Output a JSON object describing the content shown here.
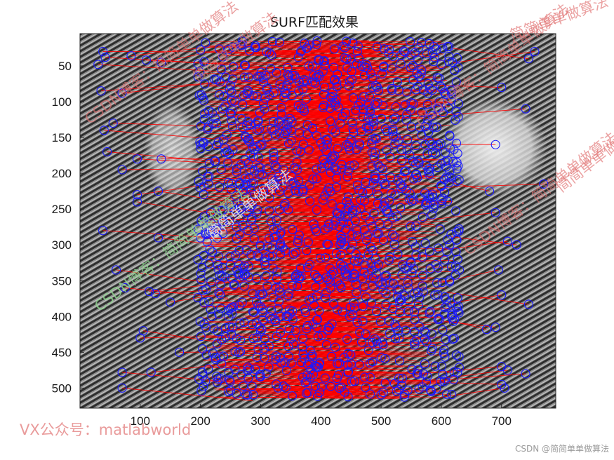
{
  "chart_data": {
    "type": "scatter",
    "title": "SURF匹配效果",
    "xlabel": "",
    "ylabel": "",
    "xlim": [
      0,
      790
    ],
    "ylim": [
      528,
      5
    ],
    "x_ticks": [
      100,
      200,
      300,
      400,
      500,
      600,
      700
    ],
    "y_ticks": [
      50,
      100,
      150,
      200,
      250,
      300,
      350,
      400,
      450,
      500
    ],
    "background": "grayscale textured image (side-by-side image pair)",
    "marker_color": "#1a1aff",
    "line_color": "#ff0000",
    "series": [
      {
        "marker": "circle",
        "points_left_sample": [
          [
            30,
            48
          ],
          [
            38,
            30
          ],
          [
            42,
            38
          ],
          [
            85,
            36
          ],
          [
            35,
            85
          ],
          [
            70,
            88
          ],
          [
            110,
            42
          ],
          [
            135,
            45
          ],
          [
            95,
            180
          ],
          [
            45,
            170
          ],
          [
            40,
            140
          ],
          [
            55,
            130
          ],
          [
            70,
            195
          ],
          [
            95,
            230
          ],
          [
            95,
            240
          ],
          [
            38,
            280
          ],
          [
            130,
            225
          ],
          [
            135,
            180
          ],
          [
            130,
            290
          ],
          [
            60,
            335
          ],
          [
            75,
            360
          ],
          [
            105,
            420
          ],
          [
            100,
            430
          ],
          [
            70,
            478
          ],
          [
            70,
            500
          ],
          [
            118,
            478
          ],
          [
            125,
            368
          ],
          [
            115,
            365
          ],
          [
            165,
            450
          ],
          [
            150,
            380
          ]
        ],
        "points_right_sample": [
          [
            755,
            30
          ],
          [
            745,
            40
          ],
          [
            700,
            80
          ],
          [
            740,
            110
          ],
          [
            690,
            160
          ],
          [
            770,
            215
          ],
          [
            680,
            225
          ],
          [
            690,
            255
          ],
          [
            725,
            300
          ],
          [
            710,
            295
          ],
          [
            695,
            335
          ],
          [
            700,
            370
          ],
          [
            745,
            383
          ],
          [
            690,
            415
          ],
          [
            675,
            418
          ],
          [
            700,
            470
          ],
          [
            710,
            475
          ],
          [
            740,
            480
          ],
          [
            700,
            495
          ],
          [
            705,
            500
          ]
        ]
      }
    ]
  },
  "watermarks": {
    "csdn_blog_1": "CSDN博客：简简单单做算法",
    "csdn_blog_2": "CSDN博客：简简单单做算法",
    "csdn_blog_3": "CSDN博客：简简单单做算法",
    "csdn_blog_4": "CSDN博客：简简单单做算法",
    "simple_1": "简简单单做算法",
    "simple_2": "简简单单做算法",
    "simple_3": "简简单单做算法",
    "simple_4": "简简单单做算法",
    "vx": "VX公众号：matlabworld",
    "footer": "CSDN @简简单单做算法"
  },
  "colors": {
    "marker": "#1a1aff",
    "match_line": "#ff0000",
    "watermark_red": "#e07070",
    "watermark_green": "#90d890"
  }
}
